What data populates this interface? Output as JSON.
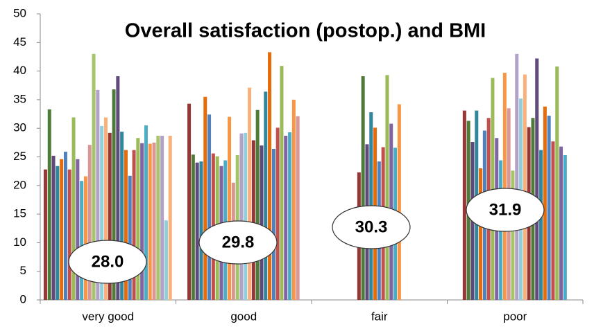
{
  "chart_data": {
    "type": "bar",
    "title": "Overall satisfaction (postop.) and BMI",
    "categories": [
      "very good",
      "good",
      "fair",
      "poor"
    ],
    "groups": [
      [
        22.8,
        33.3,
        25.2,
        23.4,
        24.6,
        25.9,
        22.8,
        31.9,
        24.6,
        20.8,
        21.6,
        27.1,
        43,
        36.7,
        30.4,
        31.9,
        29.2,
        36.8,
        39.1,
        29.4,
        26.2,
        21.7,
        26.2,
        28.3,
        27.4,
        30.5,
        27.3,
        27.5,
        28.7,
        28.7,
        13.9,
        28.7
      ],
      [
        34.3,
        25.4,
        24.0,
        24.2,
        35.5,
        32.4,
        25.6,
        25.1,
        23.4,
        24.4,
        32.0,
        20.5,
        25.3,
        29.1,
        29.2,
        37.1,
        27.9,
        33.2,
        27.0,
        36.4,
        43.3,
        26.4,
        30.1,
        40.9,
        28.7,
        29.3,
        35.0,
        32.1
      ],
      [
        22.3,
        39.1,
        27.2,
        32.8,
        30.1,
        24.2,
        26.7,
        39.3,
        30.8,
        26.6,
        34.2
      ],
      [
        33.1,
        31.3,
        27.6,
        33.1,
        23.0,
        29.6,
        31.8,
        38.8,
        28.3,
        24.4,
        39.7,
        33.5,
        22.6,
        43.0,
        35.2,
        39.4,
        30.2,
        31.8,
        42.2,
        26.2,
        33.8,
        32.2,
        27.7,
        40.8,
        26.8,
        25.3
      ]
    ],
    "annotations": [
      "28.0",
      "29.8",
      "30.3",
      "31.9"
    ],
    "colors": [
      "#953735",
      "#4f7a3a",
      "#604a7b",
      "#31859c",
      "#e46c0a",
      "#4f81bd",
      "#c0504d",
      "#9bbb59",
      "#8064a2",
      "#4bacc6",
      "#f79646",
      "#d99694",
      "#a6c46c",
      "#b3a2c7",
      "#92cddc",
      "#fab07a"
    ],
    "ylim": [
      0,
      50
    ],
    "yticks": [
      0,
      5,
      10,
      15,
      20,
      25,
      30,
      35,
      40,
      45,
      50
    ],
    "grid": false
  }
}
